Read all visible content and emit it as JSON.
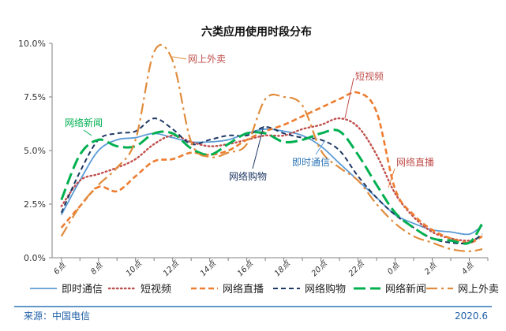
{
  "chart_data": {
    "type": "line",
    "title": "六类应用使用时段分布",
    "xlabel": "",
    "ylabel": "",
    "ylim": [
      0,
      10
    ],
    "y_ticks": [
      "0.0%",
      "2.5%",
      "5.0%",
      "7.5%",
      "10.0%"
    ],
    "categories": [
      "6点",
      "8点",
      "10点",
      "12点",
      "14点",
      "16点",
      "18点",
      "20点",
      "22点",
      "0点",
      "2点",
      "4点"
    ],
    "x_positions": [
      0,
      2,
      4,
      6,
      8,
      10,
      12,
      14,
      16,
      18,
      20,
      22
    ],
    "x_range": [
      -0.5,
      23.0
    ],
    "grid": false,
    "legend_position": "bottom",
    "series": [
      {
        "name": "即时通信",
        "color": "#5b9bd5",
        "style": "solid",
        "points": [
          [
            0,
            2.0
          ],
          [
            1,
            3.6
          ],
          [
            2,
            5.0
          ],
          [
            3,
            5.5
          ],
          [
            4,
            5.6
          ],
          [
            5,
            5.8
          ],
          [
            6,
            5.6
          ],
          [
            7,
            5.4
          ],
          [
            8,
            5.4
          ],
          [
            9,
            5.5
          ],
          [
            10,
            5.8
          ],
          [
            11,
            6.0
          ],
          [
            12,
            5.9
          ],
          [
            13,
            5.7
          ],
          [
            14,
            5.2
          ],
          [
            15,
            4.4
          ],
          [
            16,
            3.6
          ],
          [
            17,
            2.8
          ],
          [
            18,
            2.0
          ],
          [
            19,
            1.6
          ],
          [
            20,
            1.3
          ],
          [
            21,
            1.2
          ],
          [
            22,
            1.1
          ],
          [
            22.7,
            1.5
          ]
        ]
      },
      {
        "name": "短视频",
        "color": "#c0504d",
        "style": "dotted",
        "points": [
          [
            0,
            2.4
          ],
          [
            1,
            3.6
          ],
          [
            2,
            3.9
          ],
          [
            3,
            4.2
          ],
          [
            4,
            4.6
          ],
          [
            5,
            5.3
          ],
          [
            6,
            5.7
          ],
          [
            7,
            5.4
          ],
          [
            8,
            5.2
          ],
          [
            9,
            5.3
          ],
          [
            10,
            5.5
          ],
          [
            11,
            5.7
          ],
          [
            12,
            5.7
          ],
          [
            13,
            6.0
          ],
          [
            14,
            6.2
          ],
          [
            15,
            6.5
          ],
          [
            16,
            6.1
          ],
          [
            17,
            4.8
          ],
          [
            18,
            3.0
          ],
          [
            19,
            1.9
          ],
          [
            20,
            1.2
          ],
          [
            21,
            0.9
          ],
          [
            22,
            0.8
          ],
          [
            22.7,
            1.0
          ]
        ]
      },
      {
        "name": "网络直播",
        "color": "#ed7d31",
        "style": "dashed",
        "points": [
          [
            0,
            1.4
          ],
          [
            1,
            2.4
          ],
          [
            2,
            3.3
          ],
          [
            3,
            3.1
          ],
          [
            4,
            3.8
          ],
          [
            5,
            4.5
          ],
          [
            6,
            4.6
          ],
          [
            7,
            4.9
          ],
          [
            8,
            4.8
          ],
          [
            9,
            5.0
          ],
          [
            10,
            5.5
          ],
          [
            11,
            5.9
          ],
          [
            12,
            6.2
          ],
          [
            13,
            6.6
          ],
          [
            14,
            7.0
          ],
          [
            15,
            7.4
          ],
          [
            16,
            7.7
          ],
          [
            17,
            6.8
          ],
          [
            18,
            3.2
          ],
          [
            19,
            2.0
          ],
          [
            20,
            1.3
          ],
          [
            21,
            0.9
          ],
          [
            22,
            0.7
          ],
          [
            22.7,
            1.0
          ]
        ]
      },
      {
        "name": "网络购物",
        "color": "#1f3864",
        "style": "dashed-short",
        "points": [
          [
            0,
            2.1
          ],
          [
            1,
            4.0
          ],
          [
            2,
            5.5
          ],
          [
            3,
            5.8
          ],
          [
            4,
            5.9
          ],
          [
            5,
            6.5
          ],
          [
            6,
            6.0
          ],
          [
            7,
            5.3
          ],
          [
            8,
            5.5
          ],
          [
            9,
            5.7
          ],
          [
            10,
            5.7
          ],
          [
            11,
            6.1
          ],
          [
            12,
            5.8
          ],
          [
            13,
            5.6
          ],
          [
            14,
            5.5
          ],
          [
            15,
            5.0
          ],
          [
            16,
            3.8
          ],
          [
            17,
            2.8
          ],
          [
            18,
            2.0
          ],
          [
            19,
            1.4
          ],
          [
            20,
            0.9
          ],
          [
            21,
            0.7
          ],
          [
            22,
            0.7
          ],
          [
            22.7,
            1.1
          ]
        ]
      },
      {
        "name": "网络新闻",
        "color": "#00b050",
        "style": "long-dash",
        "points": [
          [
            0,
            2.7
          ],
          [
            1,
            4.8
          ],
          [
            2,
            5.5
          ],
          [
            3,
            5.2
          ],
          [
            4,
            5.2
          ],
          [
            5,
            5.8
          ],
          [
            6,
            5.8
          ],
          [
            7,
            5.1
          ],
          [
            8,
            4.8
          ],
          [
            9,
            5.3
          ],
          [
            10,
            5.8
          ],
          [
            11,
            5.8
          ],
          [
            12,
            5.4
          ],
          [
            13,
            5.5
          ],
          [
            14,
            5.8
          ],
          [
            15,
            5.9
          ],
          [
            16,
            4.8
          ],
          [
            17,
            3.4
          ],
          [
            18,
            2.1
          ],
          [
            19,
            1.4
          ],
          [
            20,
            0.9
          ],
          [
            21,
            0.8
          ],
          [
            22,
            0.7
          ],
          [
            22.7,
            1.6
          ]
        ]
      },
      {
        "name": "网上外卖",
        "color": "#e08c3c",
        "style": "dash-dot",
        "points": [
          [
            0,
            1.0
          ],
          [
            1,
            2.4
          ],
          [
            2,
            3.4
          ],
          [
            3,
            4.2
          ],
          [
            4,
            5.5
          ],
          [
            5,
            9.6
          ],
          [
            6,
            9.2
          ],
          [
            7,
            5.4
          ],
          [
            8,
            4.7
          ],
          [
            9,
            4.9
          ],
          [
            10,
            5.3
          ],
          [
            11,
            7.4
          ],
          [
            12,
            7.5
          ],
          [
            13,
            7.1
          ],
          [
            14,
            5.0
          ],
          [
            15,
            4.2
          ],
          [
            16,
            3.6
          ],
          [
            17,
            2.5
          ],
          [
            18,
            1.6
          ],
          [
            19,
            1.0
          ],
          [
            20,
            0.7
          ],
          [
            21,
            0.4
          ],
          [
            22,
            0.3
          ],
          [
            22.7,
            0.4
          ]
        ]
      }
    ],
    "annotations": [
      {
        "text": "网上外卖",
        "series": "网上外卖",
        "color": "#c0504d"
      },
      {
        "text": "短视频",
        "series": "短视频",
        "color": "#c0504d"
      },
      {
        "text": "网络新闻",
        "series": "网络新闻",
        "color": "#00b050"
      },
      {
        "text": "网络购物",
        "series": "网络购物",
        "color": "#1f3864"
      },
      {
        "text": "即时通信",
        "series": "即时通信",
        "color": "#2e75b6"
      },
      {
        "text": "网络直播",
        "series": "网络直播",
        "color": "#c0504d"
      }
    ]
  },
  "footer": {
    "source": "来源：中国电信",
    "date": "2020.6",
    "line_color": "#2e75b6"
  }
}
